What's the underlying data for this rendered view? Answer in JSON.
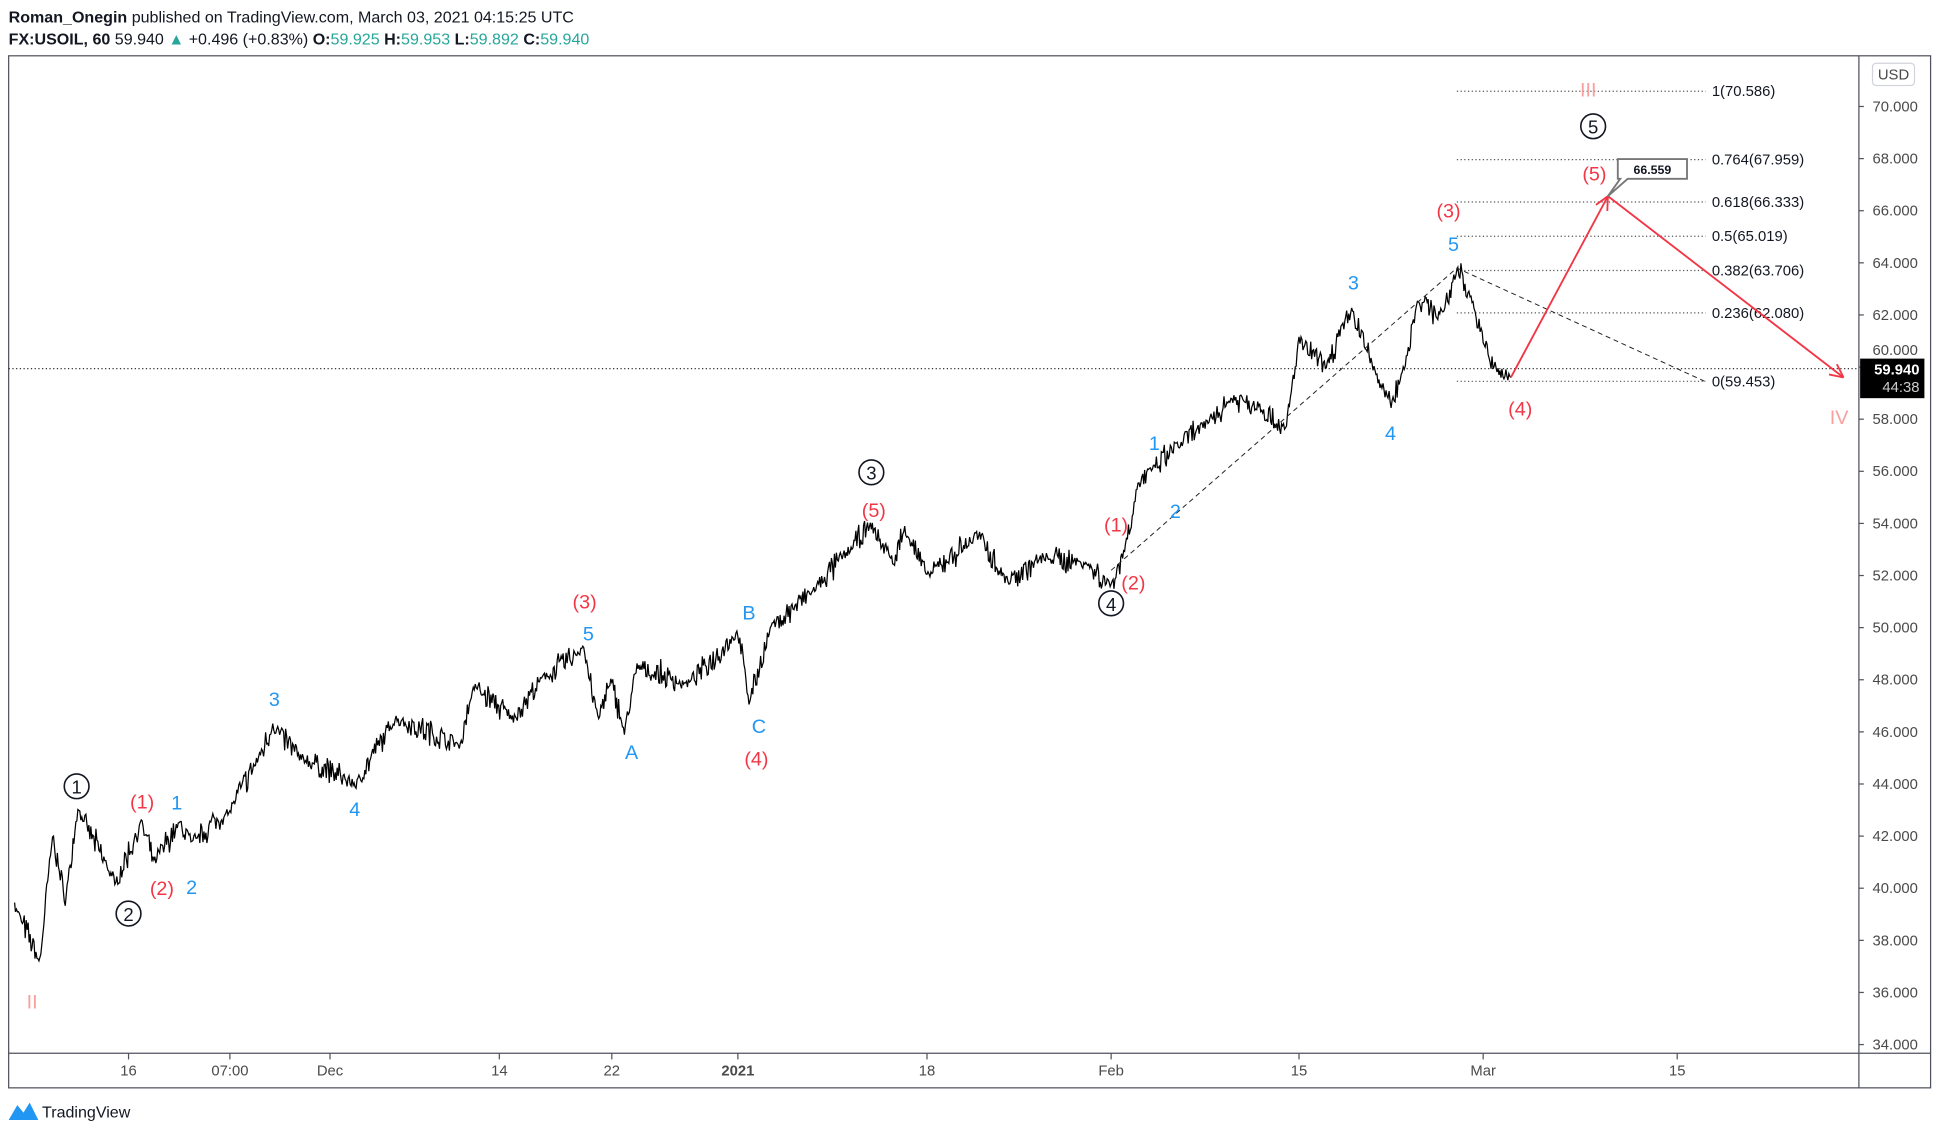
{
  "header": {
    "author": "Roman_Onegin",
    "published": "published on TradingView.com, March 03, 2021 04:15:25 UTC",
    "symbol": "FX:USOIL, 60",
    "last": "59.940",
    "change": "+0.496 (+0.83%)",
    "o_label": "O:",
    "o": "59.925",
    "h_label": "H:",
    "h": "59.953",
    "l_label": "L:",
    "l": "59.892",
    "c_label": "C:",
    "c": "59.940"
  },
  "colors": {
    "up": "#26a69a",
    "wave_red": "#f23645",
    "wave_blue": "#2196f3",
    "wave_pink": "#f7a0a0",
    "arrow": "#f23645",
    "text": "#131722"
  },
  "currency": "USD",
  "price_tag": {
    "price": "59.940",
    "countdown": "44:38"
  },
  "callout": "66.559",
  "footer_brand": "TradingView",
  "chart_data": {
    "type": "line",
    "symbol": "FX:USOIL",
    "timeframe": "60",
    "ylim": [
      34,
      71
    ],
    "yticks": [
      "34.000",
      "36.000",
      "38.000",
      "40.000",
      "42.000",
      "44.000",
      "46.000",
      "48.000",
      "50.000",
      "52.000",
      "54.000",
      "56.000",
      "58.000",
      "60.000",
      "62.000",
      "64.000",
      "66.000",
      "68.000",
      "70.000"
    ],
    "xticks": [
      {
        "label": "16",
        "date": "2020-11-16"
      },
      {
        "label": "07:00",
        "date": "2020-11-24"
      },
      {
        "label": "Dec",
        "date": "2020-12-01"
      },
      {
        "label": "14",
        "date": "2020-12-14"
      },
      {
        "label": "22",
        "date": "2020-12-22"
      },
      {
        "label": "2021",
        "date": "2021-01-01"
      },
      {
        "label": "18",
        "date": "2021-01-18"
      },
      {
        "label": "Feb",
        "date": "2021-02-01"
      },
      {
        "label": "15",
        "date": "2021-02-15"
      },
      {
        "label": "Mar",
        "date": "2021-03-01"
      },
      {
        "label": "15",
        "date": "2021-03-15"
      }
    ],
    "grid": false,
    "price_pivots": [
      [
        "2020-11-07",
        39.3
      ],
      [
        "2020-11-09",
        37.2
      ],
      [
        "2020-11-10",
        42.0
      ],
      [
        "2020-11-11",
        39.5
      ],
      [
        "2020-11-12",
        43.0
      ],
      [
        "2020-11-15",
        40.2
      ],
      [
        "2020-11-17",
        42.5
      ],
      [
        "2020-11-18",
        41.0
      ],
      [
        "2020-11-20",
        42.5
      ],
      [
        "2020-11-21",
        41.8
      ],
      [
        "2020-11-24",
        43.0
      ],
      [
        "2020-11-26",
        45.0
      ],
      [
        "2020-11-27",
        46.2
      ],
      [
        "2020-11-29",
        45.0
      ],
      [
        "2020-12-03",
        44.0
      ],
      [
        "2020-12-06",
        46.5
      ],
      [
        "2020-12-11",
        45.5
      ],
      [
        "2020-12-12",
        47.8
      ],
      [
        "2020-12-15",
        46.5
      ],
      [
        "2020-12-17",
        48.0
      ],
      [
        "2020-12-20",
        49.2
      ],
      [
        "2020-12-21",
        46.5
      ],
      [
        "2020-12-22",
        48.0
      ],
      [
        "2020-12-23",
        46.0
      ],
      [
        "2020-12-24",
        48.5
      ],
      [
        "2020-12-28",
        47.8
      ],
      [
        "2021-01-01",
        49.8
      ],
      [
        "2021-01-02",
        47.2
      ],
      [
        "2021-01-04",
        50.0
      ],
      [
        "2021-01-08",
        51.5
      ],
      [
        "2021-01-11",
        53.0
      ],
      [
        "2021-01-13",
        53.9
      ],
      [
        "2021-01-15",
        52.5
      ],
      [
        "2021-01-16",
        53.8
      ],
      [
        "2021-01-18",
        52.0
      ],
      [
        "2021-01-22",
        53.6
      ],
      [
        "2021-01-24",
        51.8
      ],
      [
        "2021-01-27",
        52.7
      ],
      [
        "2021-01-30",
        52.5
      ],
      [
        "2021-02-01",
        51.6
      ],
      [
        "2021-02-02",
        53.0
      ],
      [
        "2021-02-03",
        55.5
      ],
      [
        "2021-02-04",
        56.0
      ],
      [
        "2021-02-06",
        57.0
      ],
      [
        "2021-02-08",
        57.8
      ],
      [
        "2021-02-10",
        58.8
      ],
      [
        "2021-02-12",
        58.5
      ],
      [
        "2021-02-14",
        57.6
      ],
      [
        "2021-02-15",
        61.0
      ],
      [
        "2021-02-17",
        60.0
      ],
      [
        "2021-02-19",
        62.2
      ],
      [
        "2021-02-21",
        59.5
      ],
      [
        "2021-02-22",
        58.6
      ],
      [
        "2021-02-23",
        60.0
      ],
      [
        "2021-02-24",
        62.5
      ],
      [
        "2021-02-26",
        62.0
      ],
      [
        "2021-02-27",
        63.8
      ],
      [
        "2021-02-28",
        62.8
      ],
      [
        "2021-03-01",
        61.0
      ],
      [
        "2021-03-02",
        59.8
      ],
      [
        "2021-03-03",
        59.6
      ]
    ],
    "current_price": 59.94,
    "fib_levels": [
      {
        "label": "1(70.586)",
        "price": 70.586
      },
      {
        "label": "0.764(67.959)",
        "price": 67.959
      },
      {
        "label": "0.618(66.333)",
        "price": 66.333
      },
      {
        "label": "0.5(65.019)",
        "price": 65.019
      },
      {
        "label": "0.382(63.706)",
        "price": 63.706
      },
      {
        "label": "0.236(62.080)",
        "price": 62.08
      },
      {
        "label": "0(59.453)",
        "price": 59.453
      }
    ],
    "projection": [
      [
        "2021-03-03",
        59.6
      ],
      [
        "2021-03-10",
        66.559
      ],
      [
        "2021-03-27",
        59.6
      ]
    ],
    "trend_dashed": [
      [
        "2021-02-01",
        52.2
      ],
      [
        "2021-02-27",
        63.8
      ],
      [
        "2021-03-17",
        59.45
      ]
    ],
    "wave_labels": [
      {
        "text": "II",
        "color": "#f7a0a0",
        "circled": false
      },
      {
        "text": "III",
        "color": "#f7a0a0",
        "circled": false
      },
      {
        "text": "IV",
        "color": "#f7a0a0",
        "circled": false
      },
      {
        "text": "1",
        "color": "#131722",
        "circled": true
      },
      {
        "text": "2",
        "color": "#131722",
        "circled": true
      },
      {
        "text": "3",
        "color": "#131722",
        "circled": true
      },
      {
        "text": "4",
        "color": "#131722",
        "circled": true
      },
      {
        "text": "5",
        "color": "#131722",
        "circled": true
      },
      {
        "text": "(1)",
        "color": "#f23645",
        "circled": false
      },
      {
        "text": "(2)",
        "color": "#f23645",
        "circled": false
      },
      {
        "text": "(3)",
        "color": "#f23645",
        "circled": false
      },
      {
        "text": "(4)",
        "color": "#f23645",
        "circled": false
      },
      {
        "text": "(5)",
        "color": "#f23645",
        "circled": false
      },
      {
        "text": "(1)",
        "color": "#f23645",
        "circled": false
      },
      {
        "text": "(2)",
        "color": "#f23645",
        "circled": false
      },
      {
        "text": "(3)",
        "color": "#f23645",
        "circled": false
      },
      {
        "text": "(4)",
        "color": "#f23645",
        "circled": false
      },
      {
        "text": "(5)",
        "color": "#f23645",
        "circled": false
      },
      {
        "text": "1",
        "color": "#2196f3",
        "circled": false
      },
      {
        "text": "2",
        "color": "#2196f3",
        "circled": false
      },
      {
        "text": "3",
        "color": "#2196f3",
        "circled": false
      },
      {
        "text": "4",
        "color": "#2196f3",
        "circled": false
      },
      {
        "text": "5",
        "color": "#2196f3",
        "circled": false
      },
      {
        "text": "A",
        "color": "#2196f3",
        "circled": false
      },
      {
        "text": "B",
        "color": "#2196f3",
        "circled": false
      },
      {
        "text": "C",
        "color": "#2196f3",
        "circled": false
      },
      {
        "text": "1",
        "color": "#2196f3",
        "circled": false
      },
      {
        "text": "2",
        "color": "#2196f3",
        "circled": false
      },
      {
        "text": "3",
        "color": "#2196f3",
        "circled": false
      },
      {
        "text": "4",
        "color": "#2196f3",
        "circled": false
      },
      {
        "text": "5",
        "color": "#2196f3",
        "circled": false
      }
    ]
  }
}
